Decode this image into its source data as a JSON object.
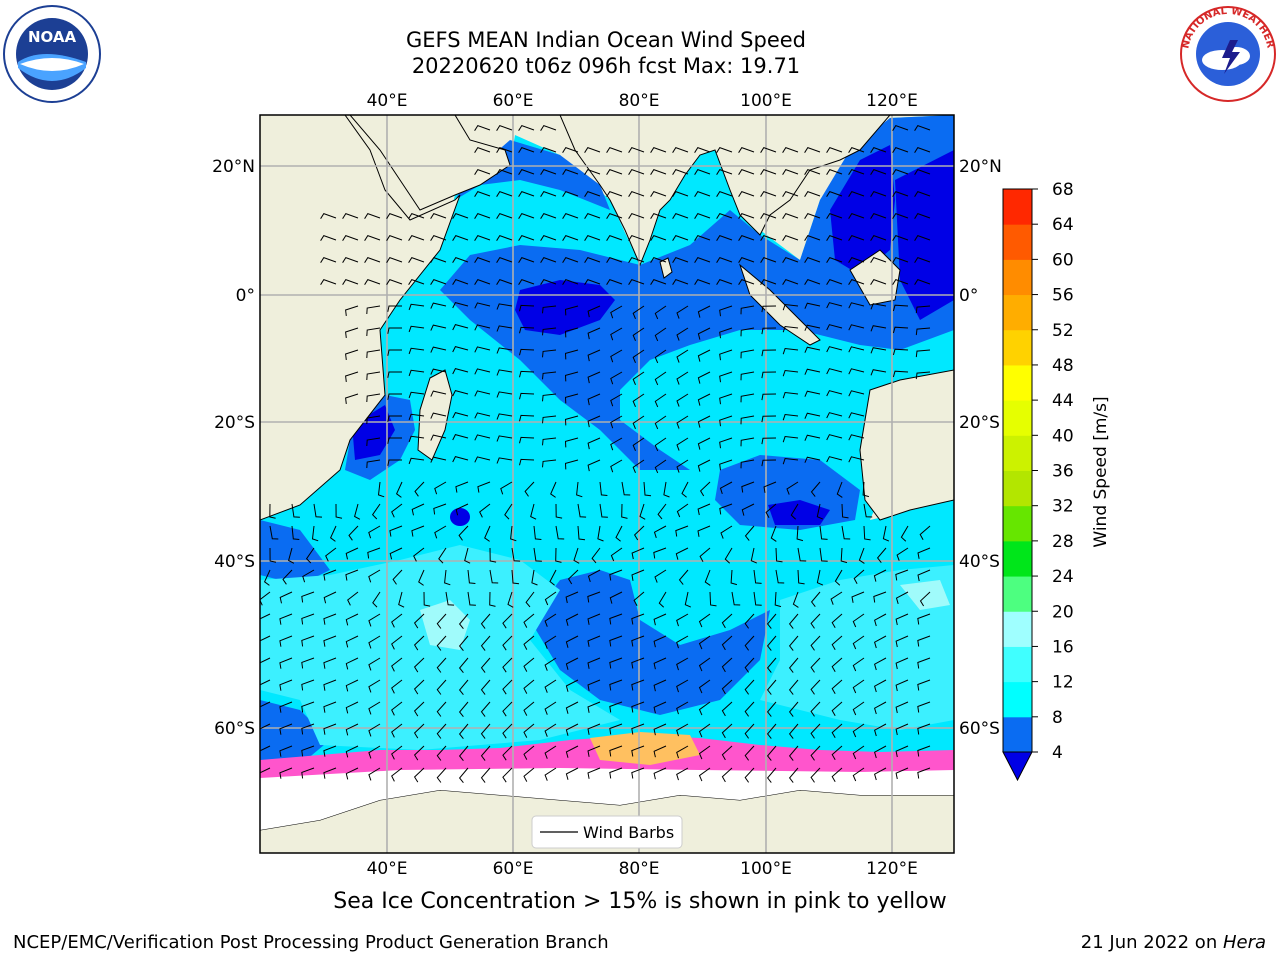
{
  "title": {
    "line1": "GEFS MEAN Indian Ocean Wind Speed",
    "line2": "20220620 t06z 096h fcst   Max: 19.71"
  },
  "logos": {
    "noaa_text": "NOAA",
    "nws_text": "NATIONAL WEATHER SERVICE"
  },
  "map": {
    "lon_labels_top": [
      "40°E",
      "60°E",
      "80°E",
      "100°E",
      "120°E"
    ],
    "lon_labels_bottom": [
      "40°E",
      "60°E",
      "80°E",
      "100°E",
      "120°E"
    ],
    "lat_labels_left": [
      "20°N",
      "0°",
      "20°S",
      "40°S",
      "60°S"
    ],
    "lat_labels_right": [
      "20°N",
      "0°",
      "20°S",
      "40°S",
      "60°S"
    ],
    "legend_label": "Wind Barbs",
    "colors": {
      "land": "#efefdc",
      "wind_4_8": "#0a6cf2",
      "wind_lt4": "#0000e6",
      "wind_8_12": "#00e8ff",
      "wind_12_16": "#3cf0ff",
      "wind_16_20": "#a0fbfb",
      "sea_ice": "#ff55cc"
    }
  },
  "colorbar": {
    "label": "Wind Speed [m/s]",
    "ticks": [
      "4",
      "8",
      "12",
      "16",
      "20",
      "24",
      "28",
      "32",
      "36",
      "40",
      "44",
      "48",
      "52",
      "56",
      "60",
      "64",
      "68"
    ],
    "colors": [
      "#0a6cf2",
      "#00ffff",
      "#40ffff",
      "#9fffff",
      "#4dff80",
      "#00e61a",
      "#66e600",
      "#b3e600",
      "#ccf200",
      "#e6ff00",
      "#ffff00",
      "#ffd200",
      "#ffad00",
      "#ff8c00",
      "#ff5a00",
      "#ff2800"
    ],
    "underflow_color": "#0000e6"
  },
  "caption": "Sea Ice Concentration > 15% is shown in pink to yellow",
  "footer": {
    "left": "NCEP/EMC/Verification Post Processing Product Generation Branch",
    "right_prefix": "21 Jun 2022 on ",
    "right_italic": "Hera"
  }
}
